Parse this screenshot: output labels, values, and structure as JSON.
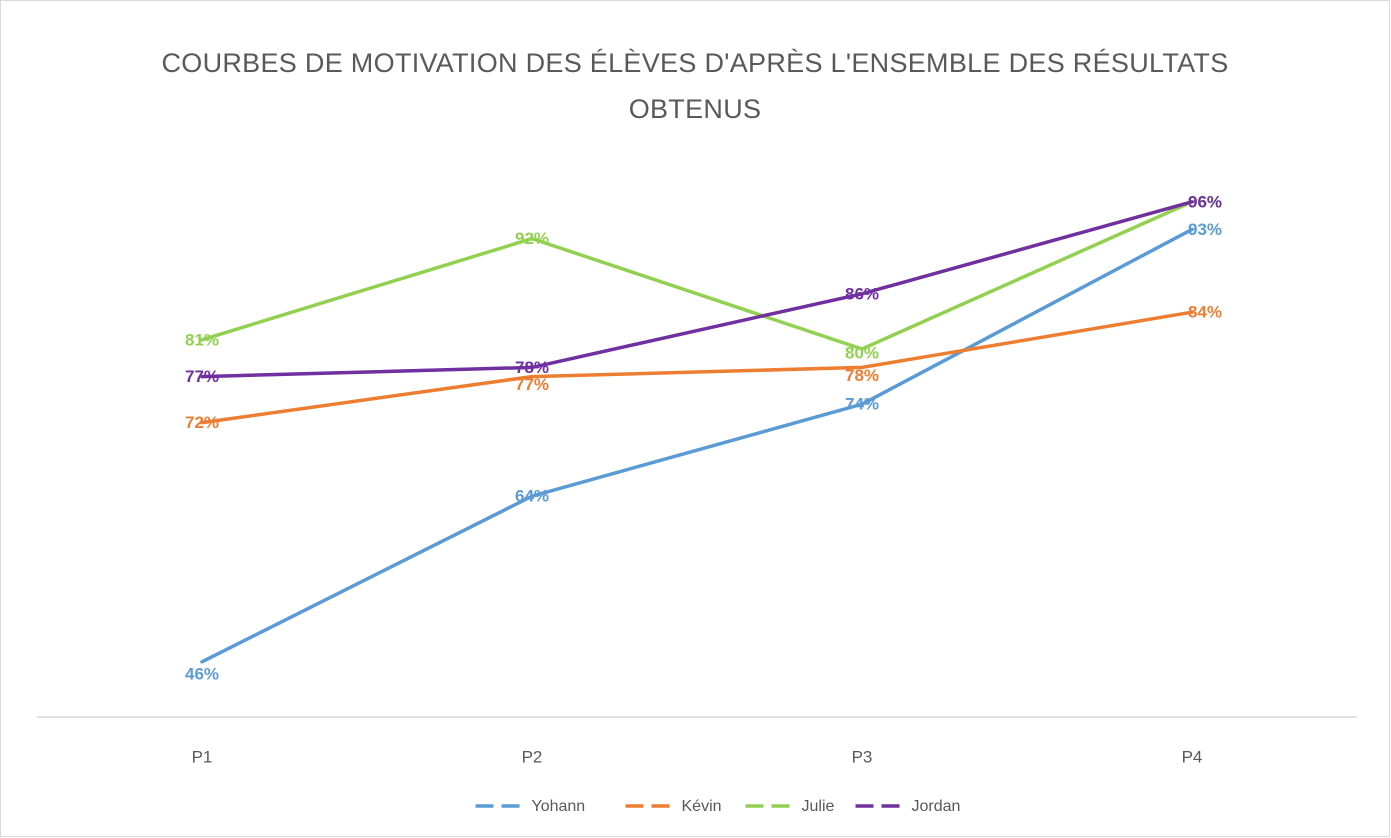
{
  "chart_data": {
    "type": "line",
    "title": "COURBES DE MOTIVATION DES ÉLÈVES D'APRÈS L'ENSEMBLE DES RÉSULTATS OBTENUS",
    "categories": [
      "P1",
      "P2",
      "P3",
      "P4"
    ],
    "series": [
      {
        "name": "Yohann",
        "color": "#5b9bd5",
        "values": [
          46,
          64,
          74,
          93
        ],
        "value_labels": [
          "46%",
          "64%",
          "74%",
          "93%"
        ]
      },
      {
        "name": "Kévin",
        "color": "#ed7d31",
        "values": [
          72,
          77,
          78,
          84
        ],
        "value_labels": [
          "72%",
          "77%",
          "78%",
          "84%"
        ]
      },
      {
        "name": "Julie",
        "color": "#92d050",
        "values": [
          81,
          92,
          80,
          96
        ],
        "value_labels": [
          "81%",
          "92%",
          "80%",
          "96%"
        ]
      },
      {
        "name": "Jordan",
        "color": "#7030a0",
        "values": [
          77,
          78,
          86,
          96
        ],
        "value_labels": [
          "77%",
          "78%",
          "86%",
          "96%"
        ]
      }
    ],
    "ylim": [
      40,
      100
    ]
  }
}
